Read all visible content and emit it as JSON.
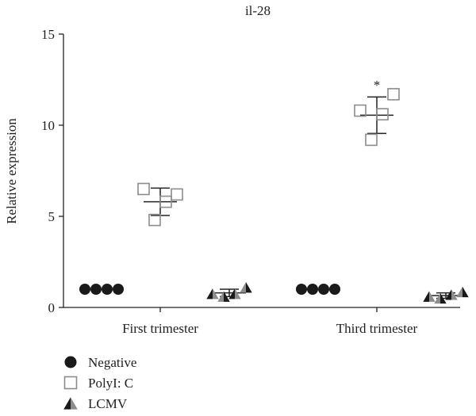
{
  "chart_data": {
    "type": "scatter",
    "title": "il-28",
    "xlabel": "",
    "ylabel": "Relative expression",
    "ylim": [
      0,
      15
    ],
    "yticks": [
      0,
      5,
      10,
      15
    ],
    "categories": [
      "First trimester",
      "Third trimester"
    ],
    "legend_position": "bottom-left",
    "series": [
      {
        "name": "Negative",
        "marker": "circle",
        "color": "#1a1a1a",
        "points": [
          {
            "group": "First trimester",
            "values": [
              1.0,
              1.0,
              1.0,
              1.0
            ],
            "mean": 1.0,
            "err": 0.0
          },
          {
            "group": "Third trimester",
            "values": [
              1.0,
              1.0,
              1.0,
              1.0
            ],
            "mean": 1.0,
            "err": 0.0
          }
        ]
      },
      {
        "name": "PolyI: C",
        "marker": "open-square",
        "color": "#8c8c8c",
        "points": [
          {
            "group": "First trimester",
            "values": [
              6.5,
              4.8,
              5.8,
              6.2
            ],
            "mean": 5.8,
            "err": 0.75
          },
          {
            "group": "Third trimester",
            "values": [
              10.8,
              9.2,
              10.6,
              11.7
            ],
            "mean": 10.55,
            "err": 1.0
          }
        ]
      },
      {
        "name": "LCMV",
        "marker": "triangle",
        "color": "#333333",
        "points": [
          {
            "group": "First trimester",
            "values": [
              0.75,
              0.6,
              0.75,
              1.1
            ],
            "mean": 0.8,
            "err": 0.2
          },
          {
            "group": "Third trimester",
            "values": [
              0.6,
              0.5,
              0.7,
              0.85
            ],
            "mean": 0.65,
            "err": 0.15
          }
        ]
      }
    ],
    "annotations": [
      {
        "text": "*",
        "group": "Third trimester",
        "series": "PolyI: C",
        "y": 12.3
      }
    ]
  }
}
